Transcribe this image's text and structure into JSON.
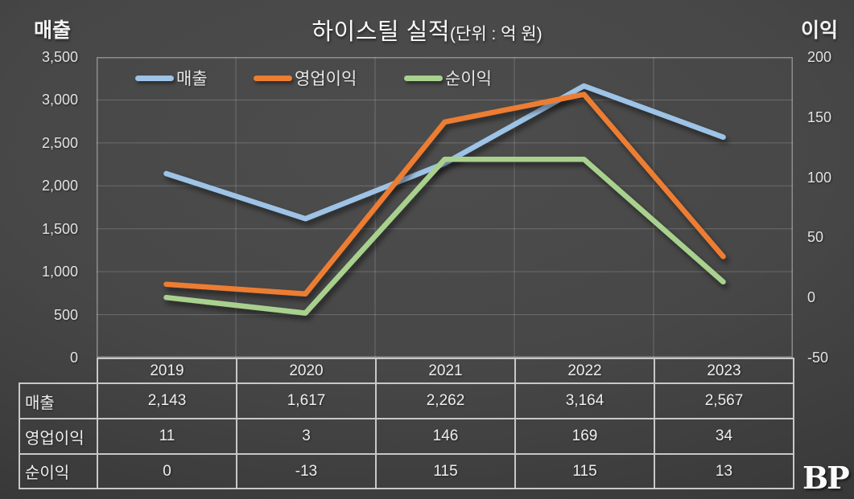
{
  "title": {
    "main": "하이스틸 실적",
    "unit": "(단위 : 억 원)"
  },
  "chart_data": {
    "type": "line",
    "title": "하이스틸 실적",
    "unit_note": "단위 : 억 원",
    "categories": [
      "2019",
      "2020",
      "2021",
      "2022",
      "2023"
    ],
    "series": [
      {
        "name": "매출",
        "axis": "left",
        "color": "#9DC3E6",
        "values": [
          2143,
          1617,
          2262,
          3164,
          2567
        ]
      },
      {
        "name": "영업이익",
        "axis": "right",
        "color": "#ED7D31",
        "values": [
          11,
          3,
          146,
          169,
          34
        ]
      },
      {
        "name": "순이익",
        "axis": "right",
        "color": "#A9D18E",
        "values": [
          0,
          -13,
          115,
          115,
          13
        ]
      }
    ],
    "left_axis": {
      "title": "매출",
      "min": 0,
      "max": 3500,
      "step": 500,
      "tick_labels": [
        "3,500",
        "3,000",
        "2,500",
        "2,000",
        "1,500",
        "1,000",
        "500",
        "0"
      ]
    },
    "right_axis": {
      "title": "이익",
      "min": -50,
      "max": 200,
      "step": 50,
      "tick_labels": [
        "200",
        "150",
        "100",
        "50",
        "0",
        "-50"
      ]
    },
    "legend_position": "top",
    "grid": true
  },
  "table": {
    "year_headers": [
      "2019",
      "2020",
      "2021",
      "2022",
      "2023"
    ],
    "rows": [
      {
        "label": "매출",
        "values": [
          "2,143",
          "1,617",
          "2,262",
          "3,164",
          "2,567"
        ]
      },
      {
        "label": "영업이익",
        "values": [
          "11",
          "3",
          "146",
          "169",
          "34"
        ]
      },
      {
        "label": "순이익",
        "values": [
          "0",
          "-13",
          "115",
          "115",
          "13"
        ]
      }
    ]
  },
  "logo": {
    "text": "BP"
  }
}
